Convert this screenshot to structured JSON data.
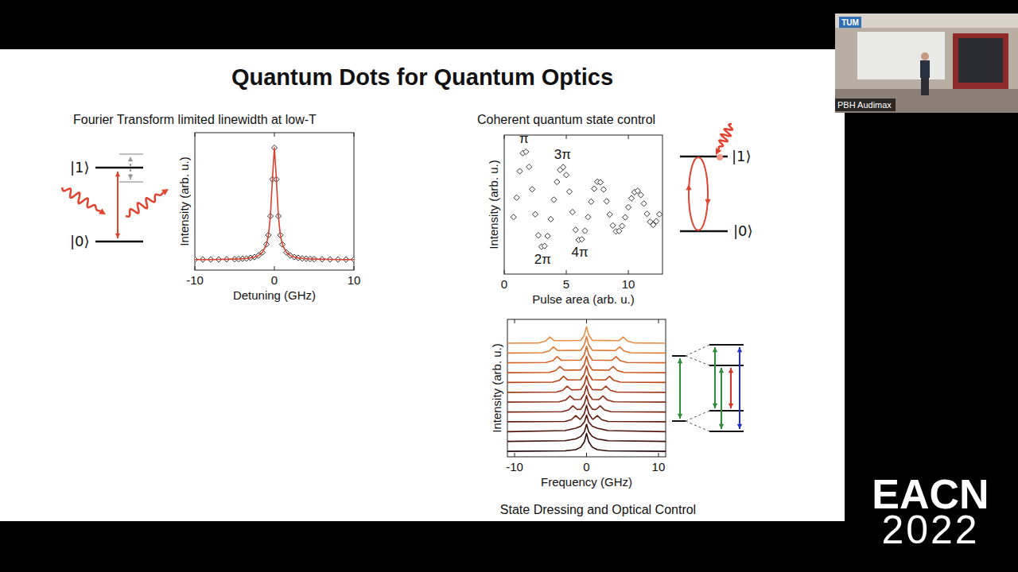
{
  "slide": {
    "title": "Quantum Dots for Quantum Optics",
    "left_heading": "Fourier Transform limited linewidth at low-T",
    "right_heading": "Coherent quantum state control",
    "caption": "State Dressing and Optical Control",
    "upper_state": "|1⟩",
    "lower_state": "|0⟩"
  },
  "chart_data": [
    {
      "type": "line",
      "xlabel": "Detuning (GHz)",
      "ylabel": "Intensity (arb. u.)",
      "x": [
        -10,
        -9,
        -8,
        -7,
        -6,
        -5,
        -4.5,
        -4,
        -3.5,
        -3,
        -2.5,
        -2,
        -1.5,
        -1,
        -0.75,
        -0.5,
        -0.25,
        0,
        0.25,
        0.5,
        0.75,
        1,
        1.5,
        2,
        2.5,
        3,
        3.5,
        4,
        4.5,
        5,
        6,
        7,
        8,
        9,
        10
      ],
      "values": [
        0.077,
        0.077,
        0.077,
        0.078,
        0.079,
        0.08,
        0.081,
        0.083,
        0.085,
        0.089,
        0.095,
        0.106,
        0.129,
        0.187,
        0.255,
        0.393,
        0.661,
        0.89,
        0.661,
        0.393,
        0.255,
        0.187,
        0.129,
        0.106,
        0.095,
        0.089,
        0.085,
        0.083,
        0.081,
        0.08,
        0.079,
        0.078,
        0.077,
        0.077,
        0.077
      ],
      "xlim": [
        -10,
        10
      ],
      "ylim": [
        0,
        1
      ],
      "xticks": [
        -10,
        0,
        10
      ],
      "tick_labels": "x",
      "marker": "diamond",
      "line_style": "solid",
      "color": "#d9412c"
    },
    {
      "type": "scatter",
      "xlabel": "Pulse area (arb. u.)",
      "ylabel": "Intensity (arb. u.)",
      "x": [
        0.75,
        1,
        1.25,
        1.5,
        1.75,
        2,
        2.25,
        2.5,
        2.75,
        3,
        3.25,
        3.5,
        3.75,
        4,
        4.25,
        4.5,
        4.75,
        5,
        5.25,
        5.5,
        5.75,
        6,
        6.25,
        6.5,
        6.75,
        7,
        7.25,
        7.5,
        7.75,
        8,
        8.25,
        8.5,
        8.75,
        9,
        9.25,
        9.5,
        9.75,
        10,
        10.25,
        10.5,
        10.75,
        11,
        11.25,
        11.5,
        11.75,
        12,
        12.25,
        12.5
      ],
      "values": [
        0.41,
        0.55,
        0.74,
        0.87,
        0.88,
        0.771,
        0.61,
        0.43,
        0.279,
        0.197,
        0.202,
        0.274,
        0.395,
        0.535,
        0.663,
        0.749,
        0.769,
        0.713,
        0.593,
        0.446,
        0.318,
        0.246,
        0.25,
        0.311,
        0.41,
        0.521,
        0.614,
        0.664,
        0.66,
        0.609,
        0.524,
        0.429,
        0.35,
        0.307,
        0.31,
        0.346,
        0.408,
        0.48,
        0.545,
        0.589,
        0.599,
        0.569,
        0.507,
        0.433,
        0.376,
        0.354,
        0.38,
        0.43
      ],
      "xlim": [
        0,
        12.75
      ],
      "ylim": [
        0,
        1
      ],
      "xticks": [
        0,
        5,
        10
      ],
      "tick_labels": "x",
      "marker": "diamond",
      "color": "#333333",
      "annotations": [
        {
          "text": "π",
          "x": 1.6,
          "y": 0.886
        },
        {
          "text": "2π",
          "x": 3.1,
          "y": 0.189
        },
        {
          "text": "3π",
          "x": 4.7,
          "y": 0.771
        },
        {
          "text": "4π",
          "x": 6.1,
          "y": 0.24
        }
      ]
    },
    {
      "type": "line",
      "xlabel": "Frequency (GHz)",
      "ylabel": "Intensity (arb. u.)",
      "xlim": [
        -11,
        11
      ],
      "ylim": [
        0,
        1
      ],
      "xticks": [
        -10,
        0,
        10
      ],
      "tick_labels": "x",
      "line_style": "solid",
      "series": [
        {
          "color": "#2b0b08",
          "x": [
            -11,
            -3,
            -1.5,
            -0.8,
            -0.3,
            0,
            0.3,
            0.8,
            1.5,
            3,
            11
          ],
          "values": [
            0.04,
            0.043,
            0.052,
            0.07,
            0.11,
            0.17,
            0.11,
            0.07,
            0.052,
            0.043,
            0.04
          ]
        },
        {
          "color": "#3f100a",
          "x": [
            -11,
            -3,
            -1.5,
            -0.8,
            -0.3,
            0,
            0.3,
            0.8,
            1.5,
            3,
            11
          ],
          "values": [
            0.112,
            0.117,
            0.13,
            0.148,
            0.182,
            0.237,
            0.182,
            0.148,
            0.13,
            0.117,
            0.112
          ]
        },
        {
          "color": "#53160c",
          "x": [
            -11,
            -3,
            -1.5,
            -0.8,
            -0.3,
            0,
            0.3,
            0.8,
            1.5,
            3,
            11
          ],
          "values": [
            0.183,
            0.191,
            0.208,
            0.223,
            0.253,
            0.303,
            0.253,
            0.223,
            0.208,
            0.191,
            0.183
          ]
        },
        {
          "color": "#671c0f",
          "x": [
            -11,
            -3,
            -2.1,
            -1.5,
            -0.9,
            -0.8,
            -0.3,
            0,
            0.3,
            0.8,
            0.9,
            1.5,
            2.1,
            3,
            11
          ],
          "values": [
            0.255,
            0.257,
            0.27,
            0.3,
            0.273,
            0.275,
            0.315,
            0.375,
            0.315,
            0.275,
            0.273,
            0.3,
            0.27,
            0.257,
            0.255
          ]
        },
        {
          "color": "#7b2311",
          "x": [
            -11,
            -3.4,
            -2.5,
            -1.9,
            -1.3,
            -0.8,
            -0.3,
            0,
            0.3,
            0.8,
            1.3,
            1.9,
            2.5,
            3.4,
            11
          ],
          "values": [
            0.326,
            0.328,
            0.341,
            0.371,
            0.344,
            0.346,
            0.386,
            0.446,
            0.386,
            0.346,
            0.344,
            0.371,
            0.341,
            0.328,
            0.326
          ]
        },
        {
          "color": "#8f2b13",
          "x": [
            -11,
            -3.8,
            -2.9,
            -2.3,
            -1.7,
            -0.8,
            -0.3,
            0,
            0.3,
            0.8,
            1.7,
            2.3,
            2.9,
            3.8,
            11
          ],
          "values": [
            0.398,
            0.4,
            0.413,
            0.443,
            0.416,
            0.418,
            0.458,
            0.518,
            0.458,
            0.418,
            0.416,
            0.443,
            0.413,
            0.4,
            0.398
          ]
        },
        {
          "color": "#a33515",
          "x": [
            -11,
            -4.2,
            -3.3,
            -2.7,
            -2.1,
            -0.8,
            -0.3,
            0,
            0.3,
            0.8,
            2.1,
            2.7,
            3.3,
            4.2,
            11
          ],
          "values": [
            0.469,
            0.471,
            0.484,
            0.514,
            0.487,
            0.489,
            0.529,
            0.589,
            0.529,
            0.489,
            0.487,
            0.514,
            0.484,
            0.471,
            0.469
          ]
        },
        {
          "color": "#b64318",
          "x": [
            -11,
            -4.7,
            -3.8,
            -3.2,
            -2.6,
            -0.8,
            -0.3,
            0,
            0.3,
            0.8,
            2.6,
            3.2,
            3.8,
            4.7,
            11
          ],
          "values": [
            0.541,
            0.543,
            0.556,
            0.586,
            0.559,
            0.561,
            0.601,
            0.661,
            0.601,
            0.561,
            0.559,
            0.586,
            0.556,
            0.543,
            0.541
          ]
        },
        {
          "color": "#c7531c",
          "x": [
            -11,
            -5.2,
            -4.3,
            -3.7,
            -3.1,
            -0.8,
            -0.3,
            0,
            0.3,
            0.8,
            3.1,
            3.7,
            4.3,
            5.2,
            11
          ],
          "values": [
            0.612,
            0.614,
            0.627,
            0.657,
            0.63,
            0.632,
            0.672,
            0.732,
            0.672,
            0.632,
            0.63,
            0.657,
            0.627,
            0.614,
            0.612
          ]
        },
        {
          "color": "#d56525",
          "x": [
            -11,
            -5.6,
            -4.7,
            -4.1,
            -3.5,
            -0.8,
            -0.3,
            0,
            0.3,
            0.8,
            3.5,
            4.1,
            4.7,
            5.6,
            11
          ],
          "values": [
            0.684,
            0.686,
            0.699,
            0.729,
            0.702,
            0.704,
            0.744,
            0.804,
            0.744,
            0.704,
            0.702,
            0.729,
            0.699,
            0.686,
            0.684
          ]
        },
        {
          "color": "#e07a33",
          "x": [
            -11,
            -6.1,
            -5.2,
            -4.6,
            -4,
            -0.8,
            -0.3,
            0,
            0.3,
            0.8,
            4,
            4.6,
            5.2,
            6.1,
            11
          ],
          "values": [
            0.755,
            0.757,
            0.77,
            0.8,
            0.773,
            0.775,
            0.815,
            0.875,
            0.815,
            0.775,
            0.773,
            0.8,
            0.77,
            0.757,
            0.755
          ]
        },
        {
          "color": "#e98f48",
          "x": [
            -11,
            -6.6,
            -5.7,
            -5.1,
            -4.5,
            -0.8,
            -0.3,
            0,
            0.3,
            0.8,
            4.5,
            5.1,
            5.7,
            6.6,
            11
          ],
          "values": [
            0.827,
            0.829,
            0.842,
            0.872,
            0.845,
            0.847,
            0.887,
            0.947,
            0.887,
            0.847,
            0.845,
            0.872,
            0.842,
            0.829,
            0.827
          ]
        }
      ]
    }
  ],
  "overlay": {
    "camera_logo": "TUM",
    "camera_label": "PBH Audimax",
    "event_name": "EACN",
    "event_year": "2022"
  }
}
